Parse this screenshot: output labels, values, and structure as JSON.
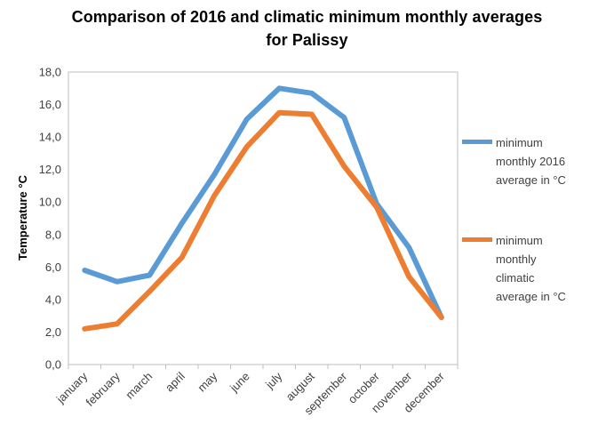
{
  "chart_data": {
    "type": "line",
    "title_line1": "Comparison of 2016 and climatic minimum monthly averages",
    "title_line2": "for Palissy",
    "ylabel": "Temperature °C",
    "xlabel": "",
    "ylim": [
      0,
      18
    ],
    "yticks": [
      "0,0",
      "2,0",
      "4,0",
      "6,0",
      "8,0",
      "10,0",
      "12,0",
      "14,0",
      "16,0",
      "18,0"
    ],
    "categories": [
      "january",
      "february",
      "march",
      "april",
      "may",
      "june",
      "july",
      "august",
      "september",
      "october",
      "november",
      "december"
    ],
    "grid": false,
    "legend_position": "right",
    "series": [
      {
        "name": "minimum monthly 2016 average in °C",
        "legend_lines": [
          "minimum",
          "monthly 2016",
          "average in °C"
        ],
        "color": "#5B9BD5",
        "values": [
          5.8,
          5.1,
          5.5,
          8.7,
          11.7,
          15.1,
          17.0,
          16.7,
          15.2,
          9.9,
          7.2,
          2.9
        ]
      },
      {
        "name": "minimum monthly climatic average in °C",
        "legend_lines": [
          "minimum",
          "monthly",
          "climatic",
          "average in °C"
        ],
        "color": "#ED7D31",
        "values": [
          2.2,
          2.5,
          4.5,
          6.6,
          10.4,
          13.4,
          15.5,
          15.4,
          12.2,
          9.7,
          5.4,
          2.9
        ]
      }
    ]
  }
}
